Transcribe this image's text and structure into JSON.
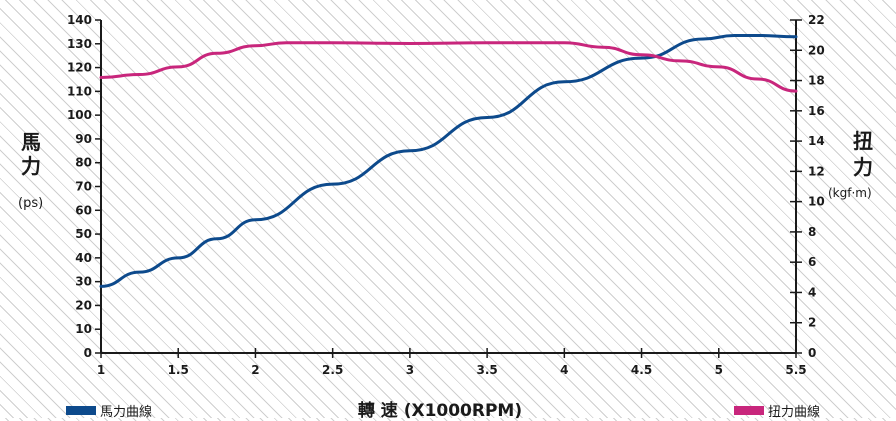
{
  "chart_data": {
    "type": "line",
    "xlabel": "轉 速 (X1000RPM)",
    "x_ticks": [
      "1",
      "1.5",
      "2",
      "2.5",
      "3",
      "3.5",
      "4",
      "4.5",
      "5",
      "5.5"
    ],
    "xlim": [
      1,
      5.5
    ],
    "left_axis": {
      "label_chars": [
        "馬",
        "力"
      ],
      "unit": "(ps)",
      "ylim": [
        0,
        140
      ],
      "ticks": [
        "0",
        "10",
        "20",
        "30",
        "40",
        "50",
        "60",
        "70",
        "80",
        "90",
        "100",
        "110",
        "120",
        "130",
        "140"
      ]
    },
    "right_axis": {
      "label_chars": [
        "扭",
        "力"
      ],
      "unit": "(kgf·m)",
      "ylim": [
        0,
        22
      ],
      "ticks": [
        "0",
        "2",
        "4",
        "6",
        "8",
        "10",
        "12",
        "14",
        "16",
        "18",
        "20",
        "22"
      ]
    },
    "grid": false,
    "series": [
      {
        "name": "馬力曲線",
        "axis": "left",
        "color": "#0d4a8c",
        "points": [
          [
            1.0,
            28
          ],
          [
            1.25,
            34
          ],
          [
            1.5,
            40
          ],
          [
            1.75,
            48
          ],
          [
            2.0,
            56
          ],
          [
            2.5,
            71
          ],
          [
            3.0,
            85
          ],
          [
            3.5,
            99
          ],
          [
            4.0,
            114
          ],
          [
            4.5,
            124
          ],
          [
            4.9,
            132
          ],
          [
            5.1,
            133.5
          ],
          [
            5.25,
            133.5
          ],
          [
            5.5,
            133
          ]
        ]
      },
      {
        "name": "扭力曲線",
        "axis": "right",
        "color": "#c8267c",
        "points": [
          [
            1.0,
            18.2
          ],
          [
            1.25,
            18.4
          ],
          [
            1.5,
            18.9
          ],
          [
            1.75,
            19.8
          ],
          [
            2.0,
            20.3
          ],
          [
            2.2,
            20.5
          ],
          [
            2.5,
            20.5
          ],
          [
            3.0,
            20.45
          ],
          [
            3.5,
            20.5
          ],
          [
            4.0,
            20.5
          ],
          [
            4.25,
            20.2
          ],
          [
            4.5,
            19.7
          ],
          [
            4.75,
            19.3
          ],
          [
            5.0,
            18.9
          ],
          [
            5.25,
            18.1
          ],
          [
            5.5,
            17.3
          ]
        ]
      }
    ]
  }
}
